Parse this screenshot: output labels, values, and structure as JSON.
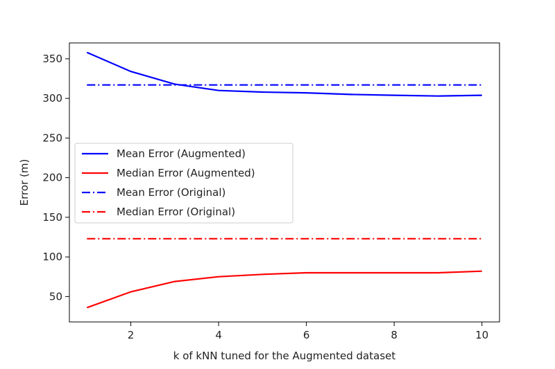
{
  "chart_data": {
    "type": "line",
    "title": "",
    "xlabel": "k of kNN tuned for the Augmented dataset",
    "ylabel": "Error (m)",
    "xlim": [
      0.6,
      10.4
    ],
    "ylim": [
      18,
      370
    ],
    "xticks": [
      2,
      4,
      6,
      8,
      10
    ],
    "yticks": [
      50,
      100,
      150,
      200,
      250,
      300,
      350
    ],
    "grid": false,
    "legend_position": "center-left",
    "x": [
      1,
      2,
      3,
      4,
      5,
      6,
      7,
      8,
      9,
      10
    ],
    "series": [
      {
        "name": "Mean Error (Augmented)",
        "color": "#0000ff",
        "style": "solid",
        "values": [
          358,
          334,
          318,
          310,
          308,
          307,
          305,
          304,
          303,
          304
        ]
      },
      {
        "name": "Median Error (Augmented)",
        "color": "#ff0000",
        "style": "solid",
        "values": [
          36,
          56,
          69,
          75,
          78,
          80,
          80,
          80,
          80,
          82
        ]
      },
      {
        "name": "Mean Error (Original)",
        "color": "#0000ff",
        "style": "dashdot",
        "values": [
          317,
          317,
          317,
          317,
          317,
          317,
          317,
          317,
          317,
          317
        ]
      },
      {
        "name": "Median Error (Original)",
        "color": "#ff0000",
        "style": "dashdot",
        "values": [
          123,
          123,
          123,
          123,
          123,
          123,
          123,
          123,
          123,
          123
        ]
      }
    ]
  }
}
